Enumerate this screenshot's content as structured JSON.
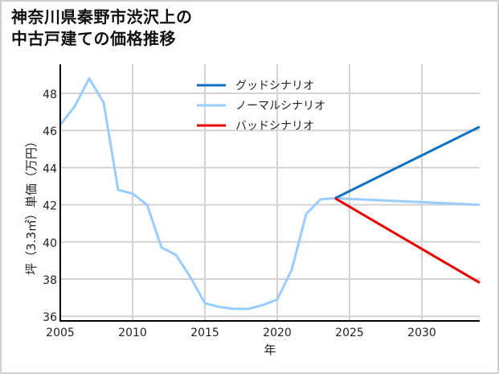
{
  "title": {
    "line1": "神奈川県秦野市渋沢上の",
    "line2": "中古戸建ての価格推移"
  },
  "axes": {
    "xlabel": "年",
    "ylabel": "坪（3.3㎡）単価（万円）",
    "xticks": [
      "2005",
      "2010",
      "2015",
      "2020",
      "2025",
      "2030"
    ],
    "yticks": [
      "36",
      "38",
      "40",
      "42",
      "44",
      "46",
      "48"
    ]
  },
  "legend": [
    {
      "label": "グッドシナリオ",
      "color": "#1072c4"
    },
    {
      "label": "ノーマルシナリオ",
      "color": "#99ccff"
    },
    {
      "label": "バッドシナリオ",
      "color": "#ee0000"
    }
  ],
  "chart_data": {
    "type": "line",
    "title": "神奈川県秦野市渋沢上の中古戸建ての価格推移",
    "xlabel": "年",
    "ylabel": "坪（3.3㎡）単価（万円）",
    "xlim": [
      2005,
      2034
    ],
    "ylim": [
      35.8,
      49.5
    ],
    "grid": true,
    "legend_position": "upper center",
    "series": [
      {
        "name": "ノーマルシナリオ",
        "color": "#99ccff",
        "x": [
          2005,
          2006,
          2007,
          2008,
          2009,
          2010,
          2011,
          2012,
          2013,
          2014,
          2015,
          2016,
          2017,
          2018,
          2019,
          2020,
          2021,
          2022,
          2023,
          2024,
          2034
        ],
        "values": [
          46.3,
          47.3,
          48.8,
          47.5,
          42.8,
          42.6,
          42.0,
          39.7,
          39.3,
          38.1,
          36.7,
          36.5,
          36.4,
          36.4,
          36.6,
          36.9,
          38.5,
          41.5,
          42.3,
          42.35,
          42.0
        ]
      },
      {
        "name": "グッドシナリオ",
        "color": "#1072c4",
        "x": [
          2024,
          2034
        ],
        "values": [
          42.35,
          46.2
        ]
      },
      {
        "name": "バッドシナリオ",
        "color": "#ee0000",
        "x": [
          2024,
          2034
        ],
        "values": [
          42.35,
          37.8
        ]
      }
    ]
  }
}
